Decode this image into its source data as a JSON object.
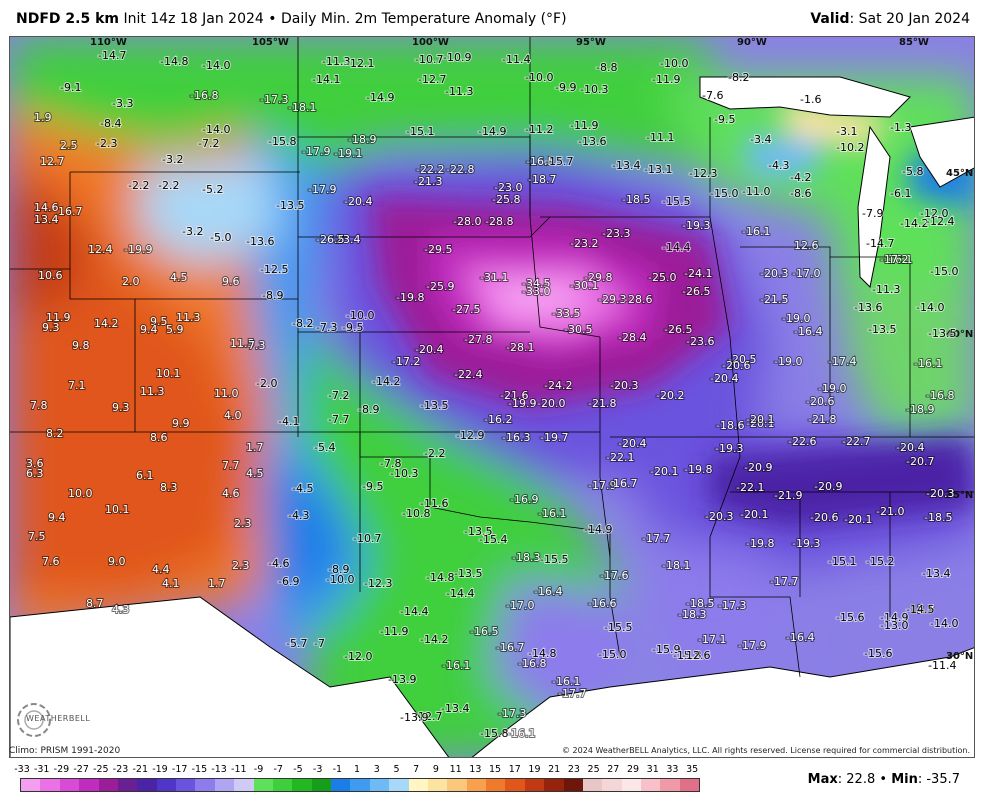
{
  "header": {
    "product": "NDFD 2.5 km",
    "init": "Init 14z 18 Jan 2024",
    "bullet": "•",
    "field": "Daily Min. 2m Temperature Anomaly (°F)",
    "valid_label": "Valid",
    "valid_value": ": Sat 20 Jan 2024"
  },
  "graticule": {
    "longitudes": [
      "110°W",
      "105°W",
      "100°W",
      "95°W",
      "90°W",
      "85°W"
    ],
    "latitudes": [
      "45°N",
      "40°N",
      "35°N",
      "30°N"
    ]
  },
  "anomalies": [
    {
      "v": "-14.7"
    },
    {
      "v": "-14.8"
    },
    {
      "v": "-14.0"
    },
    {
      "v": "-11.3"
    },
    {
      "v": "-12.1"
    },
    {
      "v": "-10.7"
    },
    {
      "v": "-10.9"
    },
    {
      "v": "-11.4"
    },
    {
      "v": "-8.8"
    },
    {
      "v": "-10.0"
    },
    {
      "v": "-9.1"
    },
    {
      "v": "-16.8"
    },
    {
      "v": "-14.1"
    },
    {
      "v": "-12.7"
    },
    {
      "v": "-11.3"
    },
    {
      "v": "-10.0"
    },
    {
      "v": "-9.9"
    },
    {
      "v": "-10.3"
    },
    {
      "v": "-11.9"
    },
    {
      "v": "-8.2"
    },
    {
      "v": "-3.3"
    },
    {
      "v": "-17.3"
    },
    {
      "v": "-18.1"
    },
    {
      "v": "-14.9"
    },
    {
      "v": "-7.6"
    },
    {
      "v": "1.9"
    },
    {
      "v": "-8.4"
    },
    {
      "v": "-14.0"
    },
    {
      "v": "-15.1"
    },
    {
      "v": "-14.9"
    },
    {
      "v": "-11.2"
    },
    {
      "v": "-11.9"
    },
    {
      "v": "-9.5"
    },
    {
      "v": "-1.6"
    },
    {
      "v": "-1.3"
    },
    {
      "v": "2.5"
    },
    {
      "v": "-2.3"
    },
    {
      "v": "-7.2"
    },
    {
      "v": "-15.8"
    },
    {
      "v": "-18.9"
    },
    {
      "v": "-13.6"
    },
    {
      "v": "-11.1"
    },
    {
      "v": "-3.4"
    },
    {
      "v": "-3.1"
    },
    {
      "v": "12.7"
    },
    {
      "v": "-3.2"
    },
    {
      "v": "-17.9"
    },
    {
      "v": "-19.1"
    },
    {
      "v": "-22.2"
    },
    {
      "v": "-22.8"
    },
    {
      "v": "-16.5"
    },
    {
      "v": "-15.7"
    },
    {
      "v": "-13.4"
    },
    {
      "v": "-13.1"
    },
    {
      "v": "-12.3"
    },
    {
      "v": "-4.3"
    },
    {
      "v": "-10.2"
    },
    {
      "v": "-5.8"
    },
    {
      "v": "-21.3"
    },
    {
      "v": "-18.7"
    },
    {
      "v": "-4.2"
    },
    {
      "v": "-2.2"
    },
    {
      "v": "-2.2"
    },
    {
      "v": "-5.2"
    },
    {
      "v": "-17.9"
    },
    {
      "v": "-23.0"
    },
    {
      "v": "-15.0"
    },
    {
      "v": "-11.0"
    },
    {
      "v": "-8.6"
    },
    {
      "v": "-6.1"
    },
    {
      "v": "14.6"
    },
    {
      "v": "16.7"
    },
    {
      "v": "-20.4"
    },
    {
      "v": "-25.8"
    },
    {
      "v": "-18.5"
    },
    {
      "v": "-15.5"
    },
    {
      "v": "-7.9"
    },
    {
      "v": "-12.0"
    },
    {
      "v": "13.4"
    },
    {
      "v": "-13.5"
    },
    {
      "v": "-28.0"
    },
    {
      "v": "-28.8"
    },
    {
      "v": "-19.3"
    },
    {
      "v": "-14.2"
    },
    {
      "v": "-12.4"
    },
    {
      "v": "-3.2"
    },
    {
      "v": "-5.0"
    },
    {
      "v": "-13.6"
    },
    {
      "v": "-23.4"
    },
    {
      "v": "-23.3"
    },
    {
      "v": "-16.1"
    },
    {
      "v": "12.6"
    },
    {
      "v": "12.4"
    },
    {
      "v": "-19.9"
    },
    {
      "v": "-26.5"
    },
    {
      "v": "-29.5"
    },
    {
      "v": "-23.2"
    },
    {
      "v": "-14.4"
    },
    {
      "v": "-14.7"
    },
    {
      "v": "-16.1"
    },
    {
      "v": "-12.5"
    },
    {
      "v": "-17.2"
    },
    {
      "v": "10.6"
    },
    {
      "v": "4.5"
    },
    {
      "v": "9.6"
    },
    {
      "v": "-31.1"
    },
    {
      "v": "-29.8"
    },
    {
      "v": "-25.0"
    },
    {
      "v": "-24.1"
    },
    {
      "v": "-20.3"
    },
    {
      "v": "-17.0"
    },
    {
      "v": "-15.0"
    },
    {
      "v": "2.0"
    },
    {
      "v": "-34.5"
    },
    {
      "v": "-30.1"
    },
    {
      "v": "-11.3"
    },
    {
      "v": "-8.9"
    },
    {
      "v": "-19.8"
    },
    {
      "v": "-25.9"
    },
    {
      "v": "-33.0"
    },
    {
      "v": "-29.3"
    },
    {
      "v": "-28.6"
    },
    {
      "v": "-26.5"
    },
    {
      "v": "-21.5"
    },
    {
      "v": "-13.6"
    },
    {
      "v": "-14.0"
    },
    {
      "v": "11.9"
    },
    {
      "v": "14.2"
    },
    {
      "v": "9.5"
    },
    {
      "v": "11.3"
    },
    {
      "v": "-10.0"
    },
    {
      "v": "-27.5"
    },
    {
      "v": "-33.5"
    },
    {
      "v": "-19.0"
    },
    {
      "v": "9.3"
    },
    {
      "v": "9.4"
    },
    {
      "v": "5.9"
    },
    {
      "v": "-8.2"
    },
    {
      "v": "-7.3"
    },
    {
      "v": "-9.5"
    },
    {
      "v": "-30.5"
    },
    {
      "v": "-26.5"
    },
    {
      "v": "-16.4"
    },
    {
      "v": "-13.5"
    },
    {
      "v": "-13.5"
    },
    {
      "v": "9.8"
    },
    {
      "v": "11.5"
    },
    {
      "v": "7.3"
    },
    {
      "v": "-27.8"
    },
    {
      "v": "-28.4"
    },
    {
      "v": "-23.6"
    },
    {
      "v": "-17.2"
    },
    {
      "v": "-20.4"
    },
    {
      "v": "-28.1"
    },
    {
      "v": "-20.5"
    },
    {
      "v": "-19.0"
    },
    {
      "v": "-17.4"
    },
    {
      "v": "-16.1"
    },
    {
      "v": "10.1"
    },
    {
      "v": "-20.6"
    },
    {
      "v": "7.1"
    },
    {
      "v": "11.3"
    },
    {
      "v": "-22.4"
    },
    {
      "v": "-14.2"
    },
    {
      "v": "-2.0"
    },
    {
      "v": "-24.2"
    },
    {
      "v": "-20.3"
    },
    {
      "v": "-20.4"
    },
    {
      "v": "-19.0"
    },
    {
      "v": "-16.8"
    },
    {
      "v": "7.8"
    },
    {
      "v": "9.3"
    },
    {
      "v": "11.0"
    },
    {
      "v": "-21.6"
    },
    {
      "v": "-20.2"
    },
    {
      "v": "-20.6"
    },
    {
      "v": "-13.5"
    },
    {
      "v": "-7.2"
    },
    {
      "v": "-8.9"
    },
    {
      "v": "-19.9"
    },
    {
      "v": "-20.0"
    },
    {
      "v": "-21.8"
    },
    {
      "v": "-21.8"
    },
    {
      "v": "-20.1"
    },
    {
      "v": "-18.9"
    },
    {
      "v": "4.0"
    },
    {
      "v": "9.9"
    },
    {
      "v": "-4.1"
    },
    {
      "v": "-7.7"
    },
    {
      "v": "-16.2"
    },
    {
      "v": "-18.6"
    },
    {
      "v": "-20.1"
    },
    {
      "v": "8.2"
    },
    {
      "v": "8.6"
    },
    {
      "v": "-12.9"
    },
    {
      "v": "-16.3"
    },
    {
      "v": "-19.7"
    },
    {
      "v": "-22.6"
    },
    {
      "v": "-22.7"
    },
    {
      "v": "1.7"
    },
    {
      "v": "-5.4"
    },
    {
      "v": "-20.4"
    },
    {
      "v": "-19.3"
    },
    {
      "v": "-20.4"
    },
    {
      "v": "3.6"
    },
    {
      "v": "-2.2"
    },
    {
      "v": "-22.1"
    },
    {
      "v": "-20.9"
    },
    {
      "v": "-20.7"
    },
    {
      "v": "7.7"
    },
    {
      "v": "-7.8"
    },
    {
      "v": "6.3"
    },
    {
      "v": "4.5"
    },
    {
      "v": "-10.3"
    },
    {
      "v": "-20.1"
    },
    {
      "v": "-19.8"
    },
    {
      "v": "6.1"
    },
    {
      "v": "-17.9"
    },
    {
      "v": "-16.7"
    },
    {
      "v": "-22.1"
    },
    {
      "v": "-20.9"
    },
    {
      "v": "10.0"
    },
    {
      "v": "8.3"
    },
    {
      "v": "4.6"
    },
    {
      "v": "-4.5"
    },
    {
      "v": "-9.5"
    },
    {
      "v": "-16.9"
    },
    {
      "v": "-21.9"
    },
    {
      "v": "-20.3"
    },
    {
      "v": "10.1"
    },
    {
      "v": "-11.6"
    },
    {
      "v": "-16.1"
    },
    {
      "v": "-20.6"
    },
    {
      "v": "-20.1"
    },
    {
      "v": "-21.0"
    },
    {
      "v": "9.4"
    },
    {
      "v": "-4.3"
    },
    {
      "v": "-10.8"
    },
    {
      "v": "-20.3"
    },
    {
      "v": "-20.1"
    },
    {
      "v": "-18.5"
    },
    {
      "v": "2.3"
    },
    {
      "v": "-13.5"
    },
    {
      "v": "-14.9"
    },
    {
      "v": "7.5"
    },
    {
      "v": "-10.7"
    },
    {
      "v": "-15.4"
    },
    {
      "v": "-17.7"
    },
    {
      "v": "-19.8"
    },
    {
      "v": "-19.3"
    },
    {
      "v": "7.6"
    },
    {
      "v": "9.0"
    },
    {
      "v": "-18.3"
    },
    {
      "v": "-18.1"
    },
    {
      "v": "-15.1"
    },
    {
      "v": "-15.2"
    },
    {
      "v": "2.3"
    },
    {
      "v": "-4.6"
    },
    {
      "v": "-15.5"
    },
    {
      "v": "-13.4"
    },
    {
      "v": "4.4"
    },
    {
      "v": "-8.9"
    },
    {
      "v": "-13.5"
    },
    {
      "v": "-17.6"
    },
    {
      "v": "-17.7"
    },
    {
      "v": "-6.9"
    },
    {
      "v": "-10.0"
    },
    {
      "v": "-12.3"
    },
    {
      "v": "-14.8"
    },
    {
      "v": "-16.4"
    },
    {
      "v": "4.1"
    },
    {
      "v": "1.7"
    },
    {
      "v": "-14.4"
    },
    {
      "v": "-17.0"
    },
    {
      "v": "-16.6"
    },
    {
      "v": "-18.5"
    },
    {
      "v": "-17.3"
    },
    {
      "v": "-18.3"
    },
    {
      "v": "13.3"
    },
    {
      "v": "8.7"
    },
    {
      "v": "4.3"
    },
    {
      "v": "-14.4"
    },
    {
      "v": "-15.6"
    },
    {
      "v": "-14.5"
    },
    {
      "v": "-15.5"
    },
    {
      "v": "-14.9"
    },
    {
      "v": "-14.0"
    },
    {
      "v": "-11.9"
    },
    {
      "v": "-13.0"
    },
    {
      "v": "-5.7"
    },
    {
      "v": "-7"
    },
    {
      "v": "-14.2"
    },
    {
      "v": "-16.5"
    },
    {
      "v": "-17.1"
    },
    {
      "v": "-17.9"
    },
    {
      "v": "-16.4"
    },
    {
      "v": "-12.0"
    },
    {
      "v": "-16.7"
    },
    {
      "v": "-14.8"
    },
    {
      "v": "-15.9"
    },
    {
      "v": "-15.0"
    },
    {
      "v": "-15.6"
    },
    {
      "v": "-16.8"
    },
    {
      "v": "-15.8"
    },
    {
      "v": "-12.6"
    },
    {
      "v": "-16.1"
    },
    {
      "v": "-13.9"
    },
    {
      "v": "-16.1"
    },
    {
      "v": "-11.4"
    },
    {
      "v": "-17.7"
    },
    {
      "v": "-12.7"
    },
    {
      "v": "-13.9"
    },
    {
      "v": "-13.4"
    },
    {
      "v": "-17.3"
    },
    {
      "v": "-16.1"
    },
    {
      "v": "-15.8"
    }
  ],
  "colorbar": {
    "ticks": [
      "-33",
      "-31",
      "-29",
      "-27",
      "-25",
      "-23",
      "-21",
      "-19",
      "-17",
      "-15",
      "-13",
      "-11",
      "-9",
      "-7",
      "-5",
      "-3",
      "-1",
      "1",
      "3",
      "5",
      "7",
      "9",
      "11",
      "13",
      "15",
      "17",
      "19",
      "21",
      "23",
      "25",
      "27",
      "29",
      "31",
      "33",
      "35"
    ],
    "colors": [
      "#f49ef0",
      "#ea72e6",
      "#d94bd6",
      "#c02cbd",
      "#9b1d99",
      "#6a1f93",
      "#4b23a6",
      "#5036c8",
      "#6a53de",
      "#8d7cec",
      "#b0a5f2",
      "#cfcaf6",
      "#5fe05a",
      "#3fcf3c",
      "#22b822",
      "#169e1b",
      "#1a7de8",
      "#3f9bf0",
      "#6ebaf5",
      "#a7d8f8",
      "#fff6c4",
      "#fde3a0",
      "#fbc77a",
      "#f8a04e",
      "#f07a2c",
      "#e0561b",
      "#c23a14",
      "#98230d",
      "#6e1609",
      "#e9c6c6",
      "#f4d6d6",
      "#fbe7e7",
      "#f8c0c8",
      "#f09aa8",
      "#e07088"
    ]
  },
  "footer": {
    "climo": "Climo: PRISM 1991-2020",
    "copyright": "© 2024 WeatherBELL Analytics, LLC. All rights reserved. License required for commercial distribution.",
    "logo": "WEATHERBELL",
    "max_label": "Max",
    "max_value": ": 22.8",
    "sep": "•",
    "min_label": "Min",
    "min_value": ": -35.7"
  }
}
